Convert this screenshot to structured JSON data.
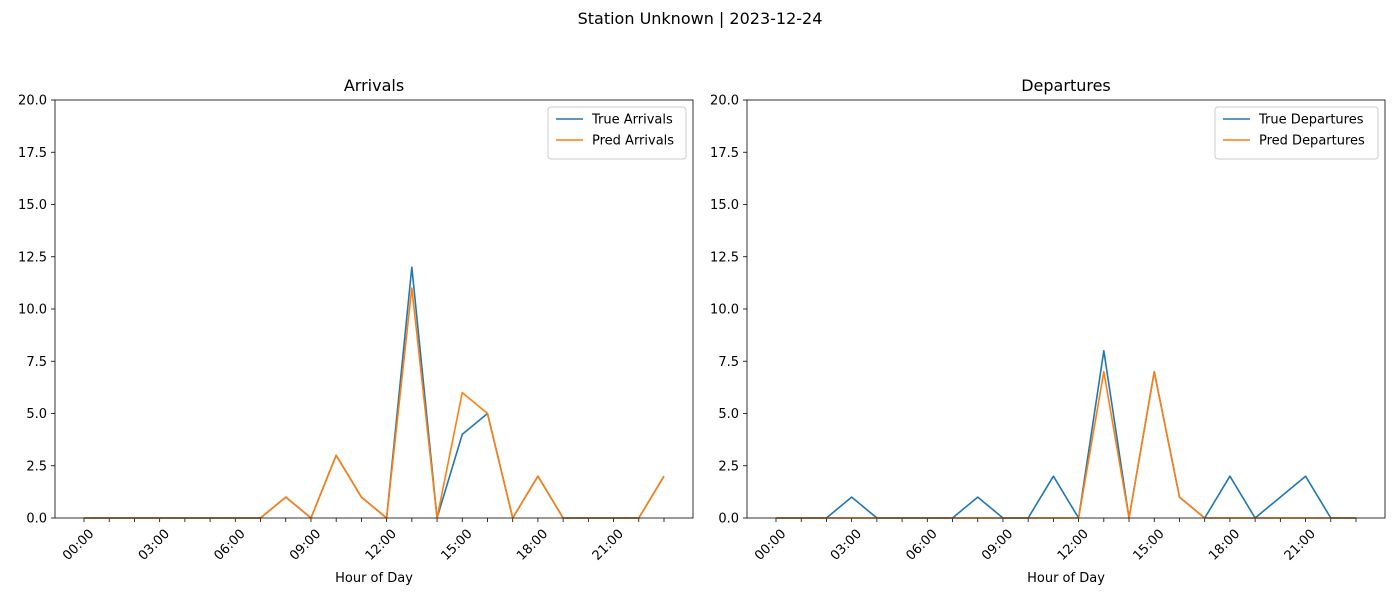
{
  "suptitle": "Station Unknown | 2023-12-24",
  "colors": {
    "true": "#1f77b4",
    "pred": "#ff7f0e"
  },
  "chart_data": [
    {
      "type": "line",
      "title": "Arrivals",
      "xlabel": "Hour of Day",
      "ylabel": "",
      "ylim": [
        0,
        20
      ],
      "yticks": [
        "0.0",
        "2.5",
        "5.0",
        "7.5",
        "10.0",
        "12.5",
        "15.0",
        "17.5",
        "20.0"
      ],
      "xticks": [
        "00:00",
        "03:00",
        "06:00",
        "09:00",
        "12:00",
        "15:00",
        "18:00",
        "21:00"
      ],
      "x": [
        0,
        1,
        2,
        3,
        4,
        5,
        6,
        7,
        8,
        9,
        10,
        11,
        12,
        13,
        14,
        15,
        16,
        17,
        18,
        19,
        20,
        21,
        22,
        23
      ],
      "legend_position": "top-right",
      "grid": false,
      "series": [
        {
          "name": "True Arrivals",
          "values": [
            0,
            0,
            0,
            0,
            0,
            0,
            0,
            0,
            1,
            0,
            3,
            1,
            0,
            12,
            0,
            4,
            5,
            0,
            2,
            0,
            0,
            0,
            0,
            2
          ]
        },
        {
          "name": "Pred Arrivals",
          "values": [
            0,
            0,
            0,
            0,
            0,
            0,
            0,
            0,
            1,
            0,
            3,
            1,
            0,
            11,
            0,
            6,
            5,
            0,
            2,
            0,
            0,
            0,
            0,
            2
          ]
        }
      ]
    },
    {
      "type": "line",
      "title": "Departures",
      "xlabel": "Hour of Day",
      "ylabel": "",
      "ylim": [
        0,
        20
      ],
      "yticks": [
        "0.0",
        "2.5",
        "5.0",
        "7.5",
        "10.0",
        "12.5",
        "15.0",
        "17.5",
        "20.0"
      ],
      "xticks": [
        "00:00",
        "03:00",
        "06:00",
        "09:00",
        "12:00",
        "15:00",
        "18:00",
        "21:00"
      ],
      "x": [
        0,
        1,
        2,
        3,
        4,
        5,
        6,
        7,
        8,
        9,
        10,
        11,
        12,
        13,
        14,
        15,
        16,
        17,
        18,
        19,
        20,
        21,
        22,
        23
      ],
      "legend_position": "top-right",
      "grid": false,
      "series": [
        {
          "name": "True Departures",
          "values": [
            0,
            0,
            0,
            1,
            0,
            0,
            0,
            0,
            1,
            0,
            0,
            2,
            0,
            8,
            0,
            7,
            1,
            0,
            2,
            0,
            1,
            2,
            0,
            0
          ]
        },
        {
          "name": "Pred Departures",
          "values": [
            0,
            0,
            0,
            0,
            0,
            0,
            0,
            0,
            0,
            0,
            0,
            0,
            0,
            7,
            0,
            7,
            1,
            0,
            0,
            0,
            0,
            0,
            0,
            0
          ]
        }
      ]
    }
  ]
}
